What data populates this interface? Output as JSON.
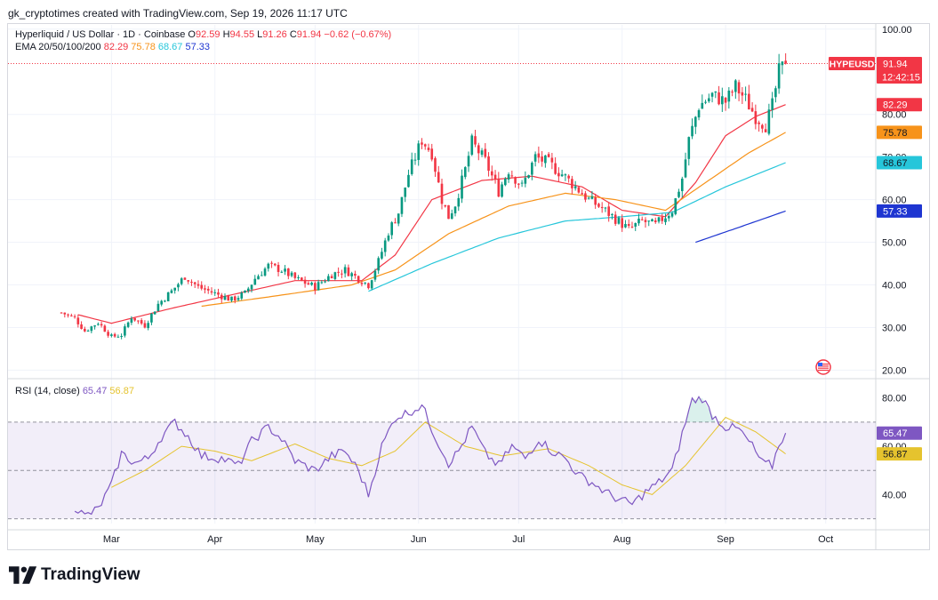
{
  "author": "gk_cryptotimes created with TradingView.com, Sep 19, 2026 11:17 UTC",
  "legend": {
    "symbol": "Hyperliquid / US Dollar · 1D · Coinbase",
    "o_label": "O",
    "o": "92.59",
    "h_label": "H",
    "h": "94.55",
    "l_label": "L",
    "l": "91.26",
    "c_label": "C",
    "c": "91.94",
    "change": "−0.62 (−0.67%)",
    "ema_label": "EMA 20/50/100/200",
    "ema20": "82.29",
    "ema50": "75.78",
    "ema100": "68.67",
    "ema200": "57.33"
  },
  "rsi_legend": {
    "label": "RSI (14, close)",
    "rsi": "65.47",
    "ma": "56.87"
  },
  "logo": "TradingView",
  "colors": {
    "up": "#089981",
    "down": "#f23645",
    "ema20": "#f23645",
    "ema50": "#f7931a",
    "ema100": "#26c6da",
    "ema200": "#1e35d1",
    "rsi": "#7e57c2",
    "rsi_ma": "#e5c32e"
  },
  "chart_data": [
    {
      "type": "candlestick",
      "symbol": "HYPEUSD",
      "y_ticks": [
        20,
        30,
        40,
        50,
        60,
        70,
        80,
        100
      ],
      "y_tick_labels": [
        "20.00",
        "30.00",
        "40.00",
        "50.00",
        "60.00",
        "70.00",
        "80.00",
        "100.00"
      ],
      "ylim": [
        18,
        101
      ],
      "x_months": [
        {
          "label": "Mar",
          "date": "2026-03-01"
        },
        {
          "label": "Apr",
          "date": "2026-04-01"
        },
        {
          "label": "May",
          "date": "2026-05-01"
        },
        {
          "label": "Jun",
          "date": "2026-06-01"
        },
        {
          "label": "Jul",
          "date": "2026-07-01"
        },
        {
          "label": "Aug",
          "date": "2026-08-01"
        },
        {
          "label": "Sep",
          "date": "2026-09-01"
        },
        {
          "label": "Oct",
          "date": "2026-10-01"
        }
      ],
      "xlim": [
        "2026-01-29",
        "2026-10-16"
      ],
      "last_price": {
        "label": "HYPEUSD",
        "value": "91.94",
        "countdown": "12:42:15"
      },
      "ema_badges": [
        {
          "name": "EMA 20",
          "value": "82.29"
        },
        {
          "name": "EMA 50",
          "value": "75.78"
        },
        {
          "name": "EMA 100",
          "value": "68.67"
        },
        {
          "name": "EMA 200",
          "value": "57.33"
        }
      ],
      "close_anchors": [
        [
          "2026-02-14",
          33.5
        ],
        [
          "2026-02-18",
          32.2
        ],
        [
          "2026-02-21",
          29.2
        ],
        [
          "2026-02-25",
          31.2
        ],
        [
          "2026-03-01",
          27.8
        ],
        [
          "2026-03-04",
          28.3
        ],
        [
          "2026-03-07",
          32.5
        ],
        [
          "2026-03-11",
          30.5
        ],
        [
          "2026-03-15",
          35.5
        ],
        [
          "2026-03-19",
          38.5
        ],
        [
          "2026-03-23",
          42.0
        ],
        [
          "2026-03-27",
          39.5
        ],
        [
          "2026-04-01",
          38.0
        ],
        [
          "2026-04-06",
          36.5
        ],
        [
          "2026-04-10",
          38.0
        ],
        [
          "2026-04-13",
          41.5
        ],
        [
          "2026-04-17",
          44.5
        ],
        [
          "2026-04-21",
          43.5
        ],
        [
          "2026-04-25",
          41.5
        ],
        [
          "2026-05-01",
          39.5
        ],
        [
          "2026-05-06",
          42.5
        ],
        [
          "2026-05-10",
          43.5
        ],
        [
          "2026-05-15",
          41.0
        ],
        [
          "2026-05-17",
          40.0
        ],
        [
          "2026-05-20",
          45.5
        ],
        [
          "2026-05-23",
          52.5
        ],
        [
          "2026-05-26",
          57.0
        ],
        [
          "2026-05-29",
          66.0
        ],
        [
          "2026-06-02",
          74.0
        ],
        [
          "2026-06-05",
          71.0
        ],
        [
          "2026-06-08",
          60.0
        ],
        [
          "2026-06-10",
          56.0
        ],
        [
          "2026-06-12",
          59.0
        ],
        [
          "2026-06-15",
          67.0
        ],
        [
          "2026-06-17",
          73.5
        ],
        [
          "2026-06-21",
          69.0
        ],
        [
          "2026-06-25",
          62.0
        ],
        [
          "2026-06-28",
          67.0
        ],
        [
          "2026-07-02",
          63.0
        ],
        [
          "2026-07-06",
          70.0
        ],
        [
          "2026-07-10",
          68.5
        ],
        [
          "2026-07-14",
          66.0
        ],
        [
          "2026-07-18",
          63.0
        ],
        [
          "2026-07-22",
          60.0
        ],
        [
          "2026-07-26",
          58.0
        ],
        [
          "2026-07-30",
          55.5
        ],
        [
          "2026-08-03",
          53.0
        ],
        [
          "2026-08-07",
          55.0
        ],
        [
          "2026-08-11",
          54.0
        ],
        [
          "2026-08-13",
          55.5
        ],
        [
          "2026-08-16",
          57.5
        ],
        [
          "2026-08-19",
          65.0
        ],
        [
          "2026-08-21",
          74.0
        ],
        [
          "2026-08-24",
          82.0
        ],
        [
          "2026-08-28",
          84.5
        ],
        [
          "2026-09-01",
          83.0
        ],
        [
          "2026-09-04",
          86.5
        ],
        [
          "2026-09-07",
          83.5
        ],
        [
          "2026-09-10",
          79.5
        ],
        [
          "2026-09-13",
          77.5
        ],
        [
          "2026-09-15",
          82.0
        ],
        [
          "2026-09-17",
          90.0
        ],
        [
          "2026-09-19",
          91.94
        ]
      ],
      "ema_anchors": {
        "ema20": [
          [
            "2026-02-19",
            33.0
          ],
          [
            "2026-03-01",
            31.0
          ],
          [
            "2026-03-19",
            34.5
          ],
          [
            "2026-04-05",
            37.5
          ],
          [
            "2026-04-25",
            41.0
          ],
          [
            "2026-05-15",
            41.0
          ],
          [
            "2026-05-25",
            47.0
          ],
          [
            "2026-06-05",
            60.0
          ],
          [
            "2026-06-20",
            64.5
          ],
          [
            "2026-07-05",
            65.5
          ],
          [
            "2026-07-20",
            63.0
          ],
          [
            "2026-08-01",
            57.5
          ],
          [
            "2026-08-14",
            56.0
          ],
          [
            "2026-08-23",
            64.0
          ],
          [
            "2026-09-01",
            75.0
          ],
          [
            "2026-09-10",
            79.5
          ],
          [
            "2026-09-19",
            82.29
          ]
        ],
        "ema50": [
          [
            "2026-03-28",
            35.0
          ],
          [
            "2026-04-20",
            37.5
          ],
          [
            "2026-05-12",
            40.0
          ],
          [
            "2026-05-25",
            43.5
          ],
          [
            "2026-06-10",
            52.0
          ],
          [
            "2026-06-28",
            58.5
          ],
          [
            "2026-07-15",
            61.5
          ],
          [
            "2026-07-30",
            60.0
          ],
          [
            "2026-08-14",
            57.5
          ],
          [
            "2026-08-26",
            64.0
          ],
          [
            "2026-09-08",
            71.0
          ],
          [
            "2026-09-19",
            75.78
          ]
        ],
        "ema100": [
          [
            "2026-05-17",
            38.5
          ],
          [
            "2026-06-05",
            45.0
          ],
          [
            "2026-06-25",
            51.0
          ],
          [
            "2026-07-15",
            55.0
          ],
          [
            "2026-08-01",
            56.0
          ],
          [
            "2026-08-16",
            57.0
          ],
          [
            "2026-09-01",
            63.0
          ],
          [
            "2026-09-19",
            68.67
          ]
        ],
        "ema200": [
          [
            "2026-08-23",
            50.0
          ],
          [
            "2026-09-05",
            53.5
          ],
          [
            "2026-09-19",
            57.33
          ]
        ]
      }
    },
    {
      "type": "line",
      "name": "RSI (14, close)",
      "y_ticks": [
        40,
        60,
        80
      ],
      "y_tick_labels": [
        "40.00",
        "60.00",
        "80.00"
      ],
      "ylim": [
        28,
        88
      ],
      "band": [
        30,
        70
      ],
      "midline": 50,
      "rsi_badge": "65.47",
      "ma_badge": "56.87",
      "rsi_anchors": [
        [
          "2026-02-18",
          35
        ],
        [
          "2026-02-21",
          31
        ],
        [
          "2026-02-25",
          34
        ],
        [
          "2026-03-01",
          44
        ],
        [
          "2026-03-04",
          57
        ],
        [
          "2026-03-08",
          53
        ],
        [
          "2026-03-12",
          55
        ],
        [
          "2026-03-16",
          64
        ],
        [
          "2026-03-20",
          70
        ],
        [
          "2026-03-24",
          64
        ],
        [
          "2026-03-28",
          56
        ],
        [
          "2026-04-03",
          55
        ],
        [
          "2026-04-08",
          52
        ],
        [
          "2026-04-12",
          62
        ],
        [
          "2026-04-17",
          68
        ],
        [
          "2026-04-21",
          63
        ],
        [
          "2026-04-25",
          54
        ],
        [
          "2026-05-01",
          50
        ],
        [
          "2026-05-06",
          56
        ],
        [
          "2026-05-10",
          58
        ],
        [
          "2026-05-14",
          50
        ],
        [
          "2026-05-17",
          40
        ],
        [
          "2026-05-21",
          60
        ],
        [
          "2026-05-25",
          72
        ],
        [
          "2026-05-29",
          74
        ],
        [
          "2026-06-02",
          77
        ],
        [
          "2026-06-06",
          64
        ],
        [
          "2026-06-10",
          53
        ],
        [
          "2026-06-13",
          58
        ],
        [
          "2026-06-17",
          68
        ],
        [
          "2026-06-21",
          57
        ],
        [
          "2026-06-25",
          52
        ],
        [
          "2026-06-29",
          60
        ],
        [
          "2026-07-03",
          55
        ],
        [
          "2026-07-07",
          63
        ],
        [
          "2026-07-11",
          58
        ],
        [
          "2026-07-15",
          55
        ],
        [
          "2026-07-19",
          48
        ],
        [
          "2026-07-23",
          45
        ],
        [
          "2026-07-27",
          41
        ],
        [
          "2026-07-31",
          38
        ],
        [
          "2026-08-04",
          36
        ],
        [
          "2026-08-08",
          41
        ],
        [
          "2026-08-12",
          45
        ],
        [
          "2026-08-16",
          50
        ],
        [
          "2026-08-20",
          70
        ],
        [
          "2026-08-22",
          79
        ],
        [
          "2026-08-25",
          80
        ],
        [
          "2026-08-28",
          73
        ],
        [
          "2026-09-01",
          68
        ],
        [
          "2026-09-05",
          67
        ],
        [
          "2026-09-09",
          60
        ],
        [
          "2026-09-12",
          53
        ],
        [
          "2026-09-15",
          52
        ],
        [
          "2026-09-17",
          61
        ],
        [
          "2026-09-19",
          65.47
        ]
      ],
      "ma_anchors": [
        [
          "2026-03-01",
          43
        ],
        [
          "2026-03-11",
          50
        ],
        [
          "2026-03-22",
          60
        ],
        [
          "2026-04-01",
          58
        ],
        [
          "2026-04-12",
          54
        ],
        [
          "2026-04-25",
          61
        ],
        [
          "2026-05-05",
          55
        ],
        [
          "2026-05-15",
          52
        ],
        [
          "2026-05-25",
          58
        ],
        [
          "2026-06-03",
          70
        ],
        [
          "2026-06-15",
          60
        ],
        [
          "2026-06-26",
          56
        ],
        [
          "2026-07-10",
          59
        ],
        [
          "2026-07-22",
          52
        ],
        [
          "2026-08-01",
          44
        ],
        [
          "2026-08-10",
          40
        ],
        [
          "2026-08-20",
          52
        ],
        [
          "2026-09-01",
          72
        ],
        [
          "2026-09-10",
          66
        ],
        [
          "2026-09-19",
          56.87
        ]
      ]
    }
  ]
}
